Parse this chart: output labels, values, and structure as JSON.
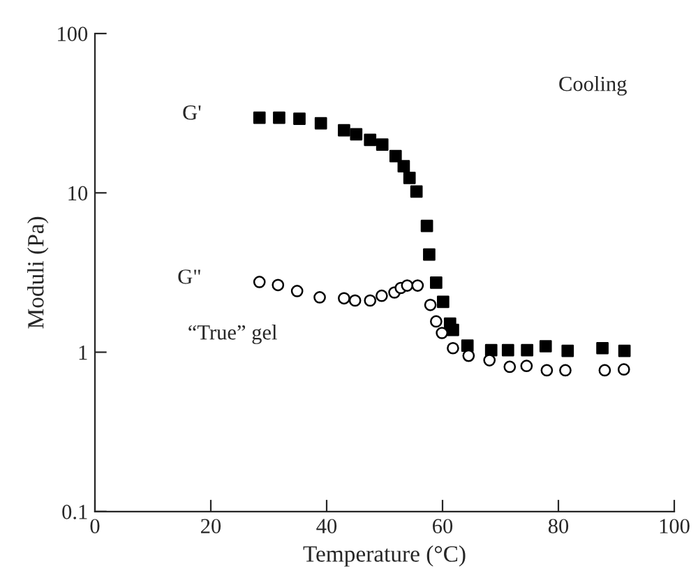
{
  "chart_data": {
    "type": "scatter",
    "xlabel": "Temperature (°C)",
    "ylabel": "Moduli (Pa)",
    "annotations": [
      "Cooling",
      "“True” gel"
    ],
    "log": "y",
    "xlim": [
      0,
      100
    ],
    "ylim": [
      0.1,
      100
    ],
    "xticks": [
      0,
      20,
      40,
      60,
      80,
      100
    ],
    "yticks": [
      0.1,
      1,
      10,
      100
    ],
    "grid": false,
    "legend": false,
    "series": [
      {
        "name": "G'",
        "color": "#000000",
        "marker": "square",
        "x": [
          28.4,
          31.8,
          35.3,
          39.0,
          43.0,
          45.1,
          47.5,
          49.6,
          51.9,
          53.3,
          54.3,
          55.5,
          57.3,
          57.7,
          58.9,
          60.1,
          61.3,
          61.8,
          64.3,
          68.4,
          71.3,
          74.6,
          77.8,
          81.6,
          87.6,
          91.4
        ],
        "values": [
          29.6,
          29.6,
          29.2,
          27.3,
          24.7,
          23.3,
          21.5,
          20.1,
          17,
          14.7,
          12.4,
          10.2,
          6.2,
          4.1,
          2.73,
          2.07,
          1.51,
          1.38,
          1.1,
          1.03,
          1.03,
          1.03,
          1.09,
          1.02,
          1.06,
          1.02
        ]
      },
      {
        "name": "G\"",
        "color": "#000000",
        "marker": "circle",
        "x": [
          28.4,
          31.6,
          34.9,
          38.8,
          43.0,
          44.9,
          47.5,
          49.5,
          51.7,
          52.8,
          53.9,
          55.7,
          57.9,
          58.9,
          59.9,
          61.8,
          64.5,
          68.1,
          71.6,
          74.5,
          78.0,
          81.2,
          88.0,
          91.3
        ],
        "values": [
          2.76,
          2.64,
          2.42,
          2.21,
          2.18,
          2.11,
          2.11,
          2.26,
          2.37,
          2.53,
          2.62,
          2.62,
          1.98,
          1.56,
          1.32,
          1.06,
          0.95,
          0.89,
          0.81,
          0.82,
          0.77,
          0.77,
          0.77,
          0.78
        ]
      }
    ]
  }
}
